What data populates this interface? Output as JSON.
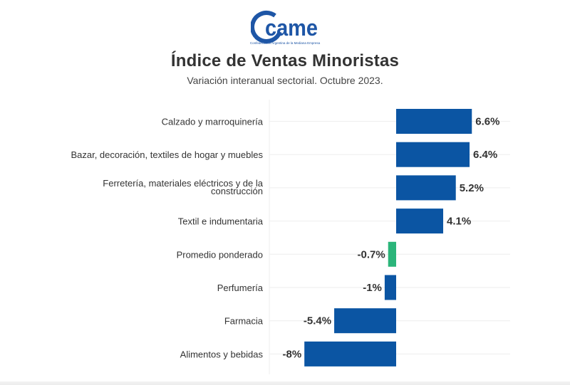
{
  "header": {
    "logo_text": "came",
    "logo_subtitle": "Confederación Argentina de la Mediana Empresa",
    "title": "Índice de Ventas Minoristas",
    "subtitle": "Variación interanual sectorial. Octubre 2023."
  },
  "colors": {
    "bar_default": "#0b55a3",
    "bar_highlight": "#2bb57a",
    "brand_blue": "#1e56a6",
    "gridline": "#eeeeee",
    "text": "#333333"
  },
  "chart_data": {
    "type": "bar",
    "orientation": "horizontal",
    "title": "Índice de Ventas Minoristas",
    "subtitle": "Variación interanual sectorial. Octubre 2023.",
    "xlabel": "",
    "ylabel": "",
    "xlim": [
      -8,
      6.6
    ],
    "grid": true,
    "legend": "none",
    "unit": "%",
    "categories": [
      "Calzado y marroquinería",
      "Bazar, decoración, textiles de hogar y muebles",
      "Ferretería, materiales eléctricos y de la construcción",
      "Textil e indumentaria",
      "Promedio ponderado",
      "Perfumería",
      "Farmacia",
      "Alimentos y bebidas"
    ],
    "values": [
      6.6,
      6.4,
      5.2,
      4.1,
      -0.7,
      -1,
      -5.4,
      -8
    ],
    "value_labels": [
      "6.6%",
      "6.4%",
      "5.2%",
      "4.1%",
      "-0.7%",
      "-1%",
      "-5.4%",
      "-8%"
    ],
    "highlight": [
      "Promedio ponderado"
    ]
  }
}
